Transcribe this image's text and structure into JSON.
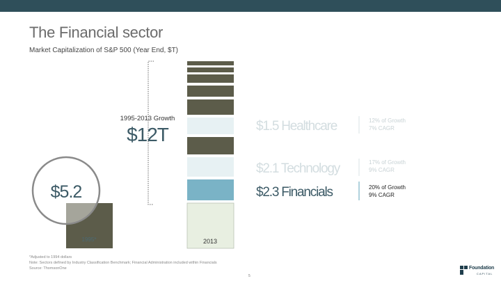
{
  "title": "The Financial sector",
  "subtitle": "Market Capitalization of S&P 500 (Year End, $T)",
  "colors": {
    "header_bar": "#2f4f5a",
    "segment_dark": "#5c5c4a",
    "segment_light": "#e7f1f3",
    "segment_financials": "#7ab3c6",
    "segment_base_2013": "#e8efe1"
  },
  "chart_data": {
    "type": "bar",
    "categories": [
      "1995",
      "2013"
    ],
    "base_1995": {
      "value": 5.2,
      "value_label": "$5.2",
      "bar_label": "1995*"
    },
    "base_2013_label": "2013",
    "growth": {
      "label": "1995-2013 Growth",
      "value": 12,
      "value_label": "$12T"
    },
    "sectors": [
      {
        "name": "Healthcare",
        "value": 1.5,
        "value_label": "$1.5 Healthcare",
        "growth_share": "12% of Growth",
        "cagr": "7% CAGR",
        "highlighted": false
      },
      {
        "name": "Technology",
        "value": 2.1,
        "value_label": "$2.1 Technology",
        "growth_share": "17% of Growth",
        "cagr": "9% CAGR",
        "highlighted": false
      },
      {
        "name": "Financials",
        "value": 2.3,
        "value_label": "$2.3 Financials",
        "growth_share": "20% of Growth",
        "cagr": "9% CAGR",
        "highlighted": true
      }
    ],
    "stack_2013": [
      {
        "sector": "Other",
        "highlight": "dark"
      },
      {
        "sector": "Other",
        "highlight": "dark"
      },
      {
        "sector": "Other",
        "highlight": "dark"
      },
      {
        "sector": "Other",
        "highlight": "dark"
      },
      {
        "sector": "Other",
        "highlight": "dark"
      },
      {
        "sector": "Healthcare",
        "highlight": "light"
      },
      {
        "sector": "Other",
        "highlight": "dark"
      },
      {
        "sector": "Technology",
        "highlight": "light"
      },
      {
        "sector": "Financials",
        "highlight": "accent"
      }
    ]
  },
  "footnotes": [
    "*Adjusted to 1994 dollars",
    "Note: Sectors defined by Industry Classification Benchmark; Financial Administration included within Financials",
    "Source: ThomsonOne"
  ],
  "page_number": "5",
  "logo": {
    "name": "Foundation",
    "sub": "CAPITAL"
  }
}
